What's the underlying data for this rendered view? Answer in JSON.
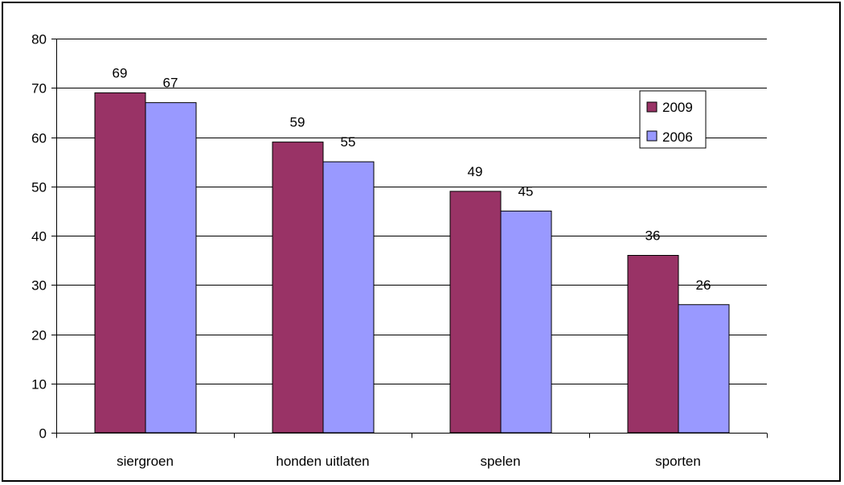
{
  "chart_data": {
    "type": "bar",
    "categories": [
      "siergroen",
      "honden uitlaten",
      "spelen",
      "sporten"
    ],
    "series": [
      {
        "name": "2009",
        "values": [
          69,
          59,
          49,
          36
        ],
        "color": "#993366"
      },
      {
        "name": "2006",
        "values": [
          67,
          55,
          45,
          26
        ],
        "color": "#9999ff"
      }
    ],
    "ylim": [
      0,
      80
    ],
    "yticks": [
      0,
      10,
      20,
      30,
      40,
      50,
      60,
      70,
      80
    ],
    "grid": true,
    "legend_position": "top-right",
    "data_labels": true
  }
}
